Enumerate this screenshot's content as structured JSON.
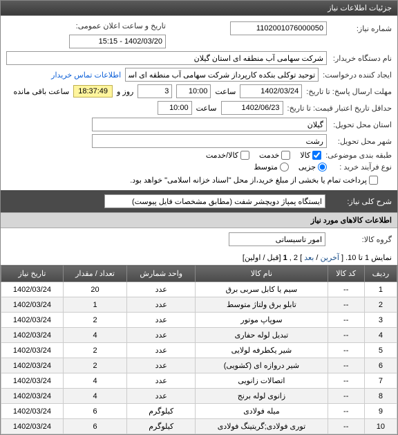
{
  "panel_title": "جزئیات اطلاعات نیاز",
  "labels": {
    "need_no": "شماره نیاز:",
    "announce_dt": "تاریخ و ساعت اعلان عمومی:",
    "buyer_org": "نام دستگاه خریدار:",
    "requester": "ایجاد کننده درخواست:",
    "send_deadline": "مهلت ارسال پاسخ: تا تاریخ:",
    "hour": "ساعت",
    "and": "و",
    "day": "روز و",
    "remain": "ساعت باقی مانده",
    "validity": "حداقل تاریخ اعتبار قیمت: تا تاریخ:",
    "deliver_province": "استان محل تحویل:",
    "deliver_city": "شهر محل تحویل:",
    "topic_class": "طبقه بندی موضوعی:",
    "buy_process": "نوع فرآیند خرید :",
    "pay_note": "پرداخت تمام یا بخشی از مبلغ خرید،از محل \"اسناد خزانه اسلامی\" خواهد بود.",
    "need_desc": "شرح کلی نیاز:",
    "items_section": "اطلاعات کالاهای مورد نیاز",
    "goods_group": "گروه کالا:",
    "contact_link": "اطلاعات تماس خریدار"
  },
  "values": {
    "need_no": "1102001076000050",
    "announce_dt": "1402/03/20 - 15:15",
    "buyer_org": "شرکت سهامی آب منطقه ای استان گیلان",
    "requester": "توحید توکلی بنکده کارپرداز شرکت سهامی آب منطقه ای استان گیلان",
    "deadline_date": "1402/03/24",
    "deadline_time": "10:00",
    "remain_days": "3",
    "remain_time": "18:37:49",
    "validity_date": "1402/06/23",
    "validity_time": "10:00",
    "province": "گیلان",
    "city": "رشت",
    "need_desc": "ایستگاه پمپاژ دویچشر شفت (مطابق مشخصات فایل پیوست)",
    "goods_group": "امور تاسیساتی"
  },
  "topic_opts": {
    "goods": "کالا",
    "service": "خدمت",
    "both": "کالا/خدمت"
  },
  "proc_opts": {
    "partial": "جزیی",
    "medium": "متوسط"
  },
  "pager": {
    "prefix": "نمایش 1 تا 10. [",
    "last": "آخرین",
    "sep1": " / ",
    "next": "بعد",
    "mid": " ] 2 ,",
    "cur": "1",
    "suffix": " [قبل / اولین]"
  },
  "table": {
    "headers": [
      "ردیف",
      "کد کالا",
      "نام کالا",
      "واحد شمارش",
      "تعداد / مقدار",
      "تاریخ نیاز"
    ],
    "rows": [
      [
        "1",
        "--",
        "سیم یا کابل سربی برق",
        "عدد",
        "20",
        "1402/03/24"
      ],
      [
        "2",
        "--",
        "تابلو برق ولتاژ متوسط",
        "عدد",
        "1",
        "1402/03/24"
      ],
      [
        "3",
        "--",
        "سوپاپ موتور",
        "عدد",
        "2",
        "1402/03/24"
      ],
      [
        "4",
        "--",
        "تبدیل لوله حفاری",
        "عدد",
        "4",
        "1402/03/24"
      ],
      [
        "5",
        "--",
        "شیر یکطرفه لولایی",
        "عدد",
        "2",
        "1402/03/24"
      ],
      [
        "6",
        "--",
        "شیر دروازه ای (کشویی)",
        "عدد",
        "2",
        "1402/03/24"
      ],
      [
        "7",
        "--",
        "اتصالات زانویی",
        "عدد",
        "4",
        "1402/03/24"
      ],
      [
        "8",
        "--",
        "زانوی لوله برنج",
        "عدد",
        "4",
        "1402/03/24"
      ],
      [
        "9",
        "--",
        "میله فولادی",
        "کیلوگرم",
        "6",
        "1402/03/24"
      ],
      [
        "10",
        "--",
        "توری فولادی;گریتینگ فولادی",
        "کیلوگرم",
        "6",
        "1402/03/24"
      ]
    ]
  }
}
